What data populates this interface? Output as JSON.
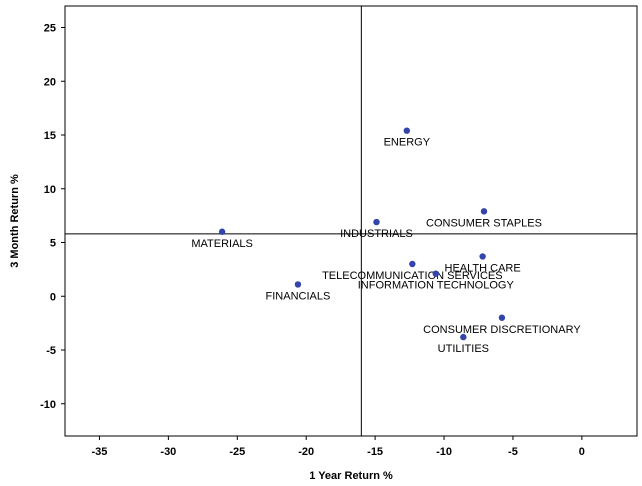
{
  "chart_data": {
    "type": "scatter",
    "title": "",
    "xlabel": "1 Year Return %",
    "ylabel": "3 Month Return %",
    "xlim": [
      -37.5,
      4
    ],
    "ylim": [
      -13,
      27
    ],
    "x_ticks": [
      -35,
      -30,
      -25,
      -20,
      -15,
      -10,
      -5,
      0
    ],
    "y_ticks": [
      -10,
      -5,
      0,
      5,
      10,
      15,
      20,
      25
    ],
    "x_tick_labels": [
      "-35",
      "-30",
      "-25",
      "-20",
      "-15",
      "-10",
      "-5",
      "0"
    ],
    "y_tick_labels": [
      "-10",
      "-5",
      "0",
      "5",
      "10",
      "15",
      "20",
      "25"
    ],
    "grid": false,
    "reference_lines": {
      "x": -16,
      "y": 5.8
    },
    "point_color": "#3344aa",
    "points": [
      {
        "label": "ENERGY",
        "x": -12.7,
        "y": 15.4
      },
      {
        "label": "CONSUMER STAPLES",
        "x": -7.1,
        "y": 7.9
      },
      {
        "label": "INDUSTRIALS",
        "x": -14.9,
        "y": 6.9
      },
      {
        "label": "MATERIALS",
        "x": -26.1,
        "y": 6.0
      },
      {
        "label": "HEALTH CARE",
        "x": -7.2,
        "y": 3.7
      },
      {
        "label": "TELECOMMUNICATION SERVICES",
        "x": -12.3,
        "y": 3.0
      },
      {
        "label": "INFORMATION TECHNOLOGY",
        "x": -10.6,
        "y": 2.1
      },
      {
        "label": "FINANCIALS",
        "x": -20.6,
        "y": 1.1
      },
      {
        "label": "CONSUMER DISCRETIONARY",
        "x": -5.8,
        "y": -2.0
      },
      {
        "label": "UTILITIES",
        "x": -8.6,
        "y": -3.8
      }
    ]
  }
}
